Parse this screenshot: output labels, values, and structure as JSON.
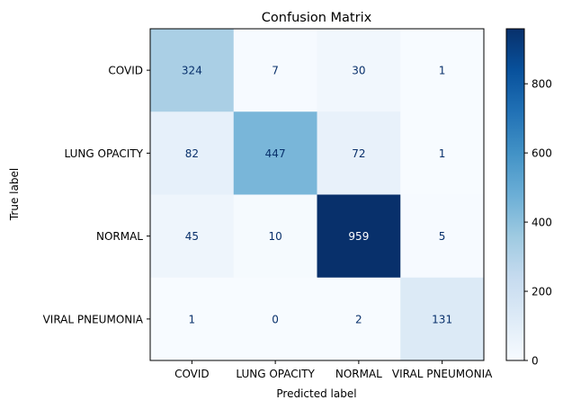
{
  "chart_data": {
    "type": "heatmap",
    "title": "Confusion Matrix",
    "xlabel": "Predicted label",
    "ylabel": "True label",
    "x_categories": [
      "COVID",
      "LUNG OPACITY",
      "NORMAL",
      "VIRAL PNEUMONIA"
    ],
    "y_categories": [
      "COVID",
      "LUNG OPACITY",
      "NORMAL",
      "VIRAL PNEUMONIA"
    ],
    "values": [
      [
        324,
        7,
        30,
        1
      ],
      [
        82,
        447,
        72,
        1
      ],
      [
        45,
        10,
        959,
        5
      ],
      [
        1,
        0,
        2,
        131
      ]
    ],
    "colormap": "Blues",
    "vmin": 0,
    "vmax": 959,
    "colorbar_ticks": [
      0,
      200,
      400,
      600,
      800
    ],
    "grid": false,
    "light_text_color": "#ffffff",
    "dark_text_color": "#08306b"
  }
}
